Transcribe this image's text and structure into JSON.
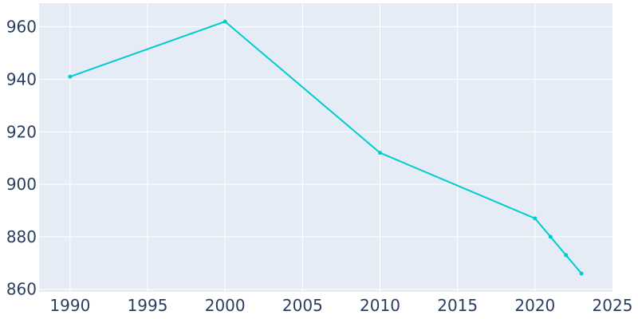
{
  "chart_data": {
    "type": "line",
    "title": "",
    "xlabel": "",
    "ylabel": "",
    "xlim": [
      1988,
      2025
    ],
    "ylim": [
      859,
      969
    ],
    "grid": true,
    "legend": "none",
    "colors": {
      "plot_background": "#e5ecf6",
      "grid": "#ffffff",
      "series": "#00cccc",
      "tick_text": "#2a3f5f"
    },
    "x_ticks": [
      1990,
      1995,
      2000,
      2005,
      2010,
      2015,
      2020,
      2025
    ],
    "x_tick_labels": [
      "1990",
      "1995",
      "2000",
      "2005",
      "2010",
      "2015",
      "2020",
      "2025"
    ],
    "y_ticks": [
      860,
      880,
      900,
      920,
      940,
      960
    ],
    "y_tick_labels": [
      "860",
      "880",
      "900",
      "920",
      "940",
      "960"
    ],
    "series": [
      {
        "x": [
          1990,
          2000,
          2010,
          2020,
          2021,
          2022,
          2023
        ],
        "values": [
          941,
          962,
          912,
          887,
          880,
          873,
          866
        ]
      }
    ]
  }
}
